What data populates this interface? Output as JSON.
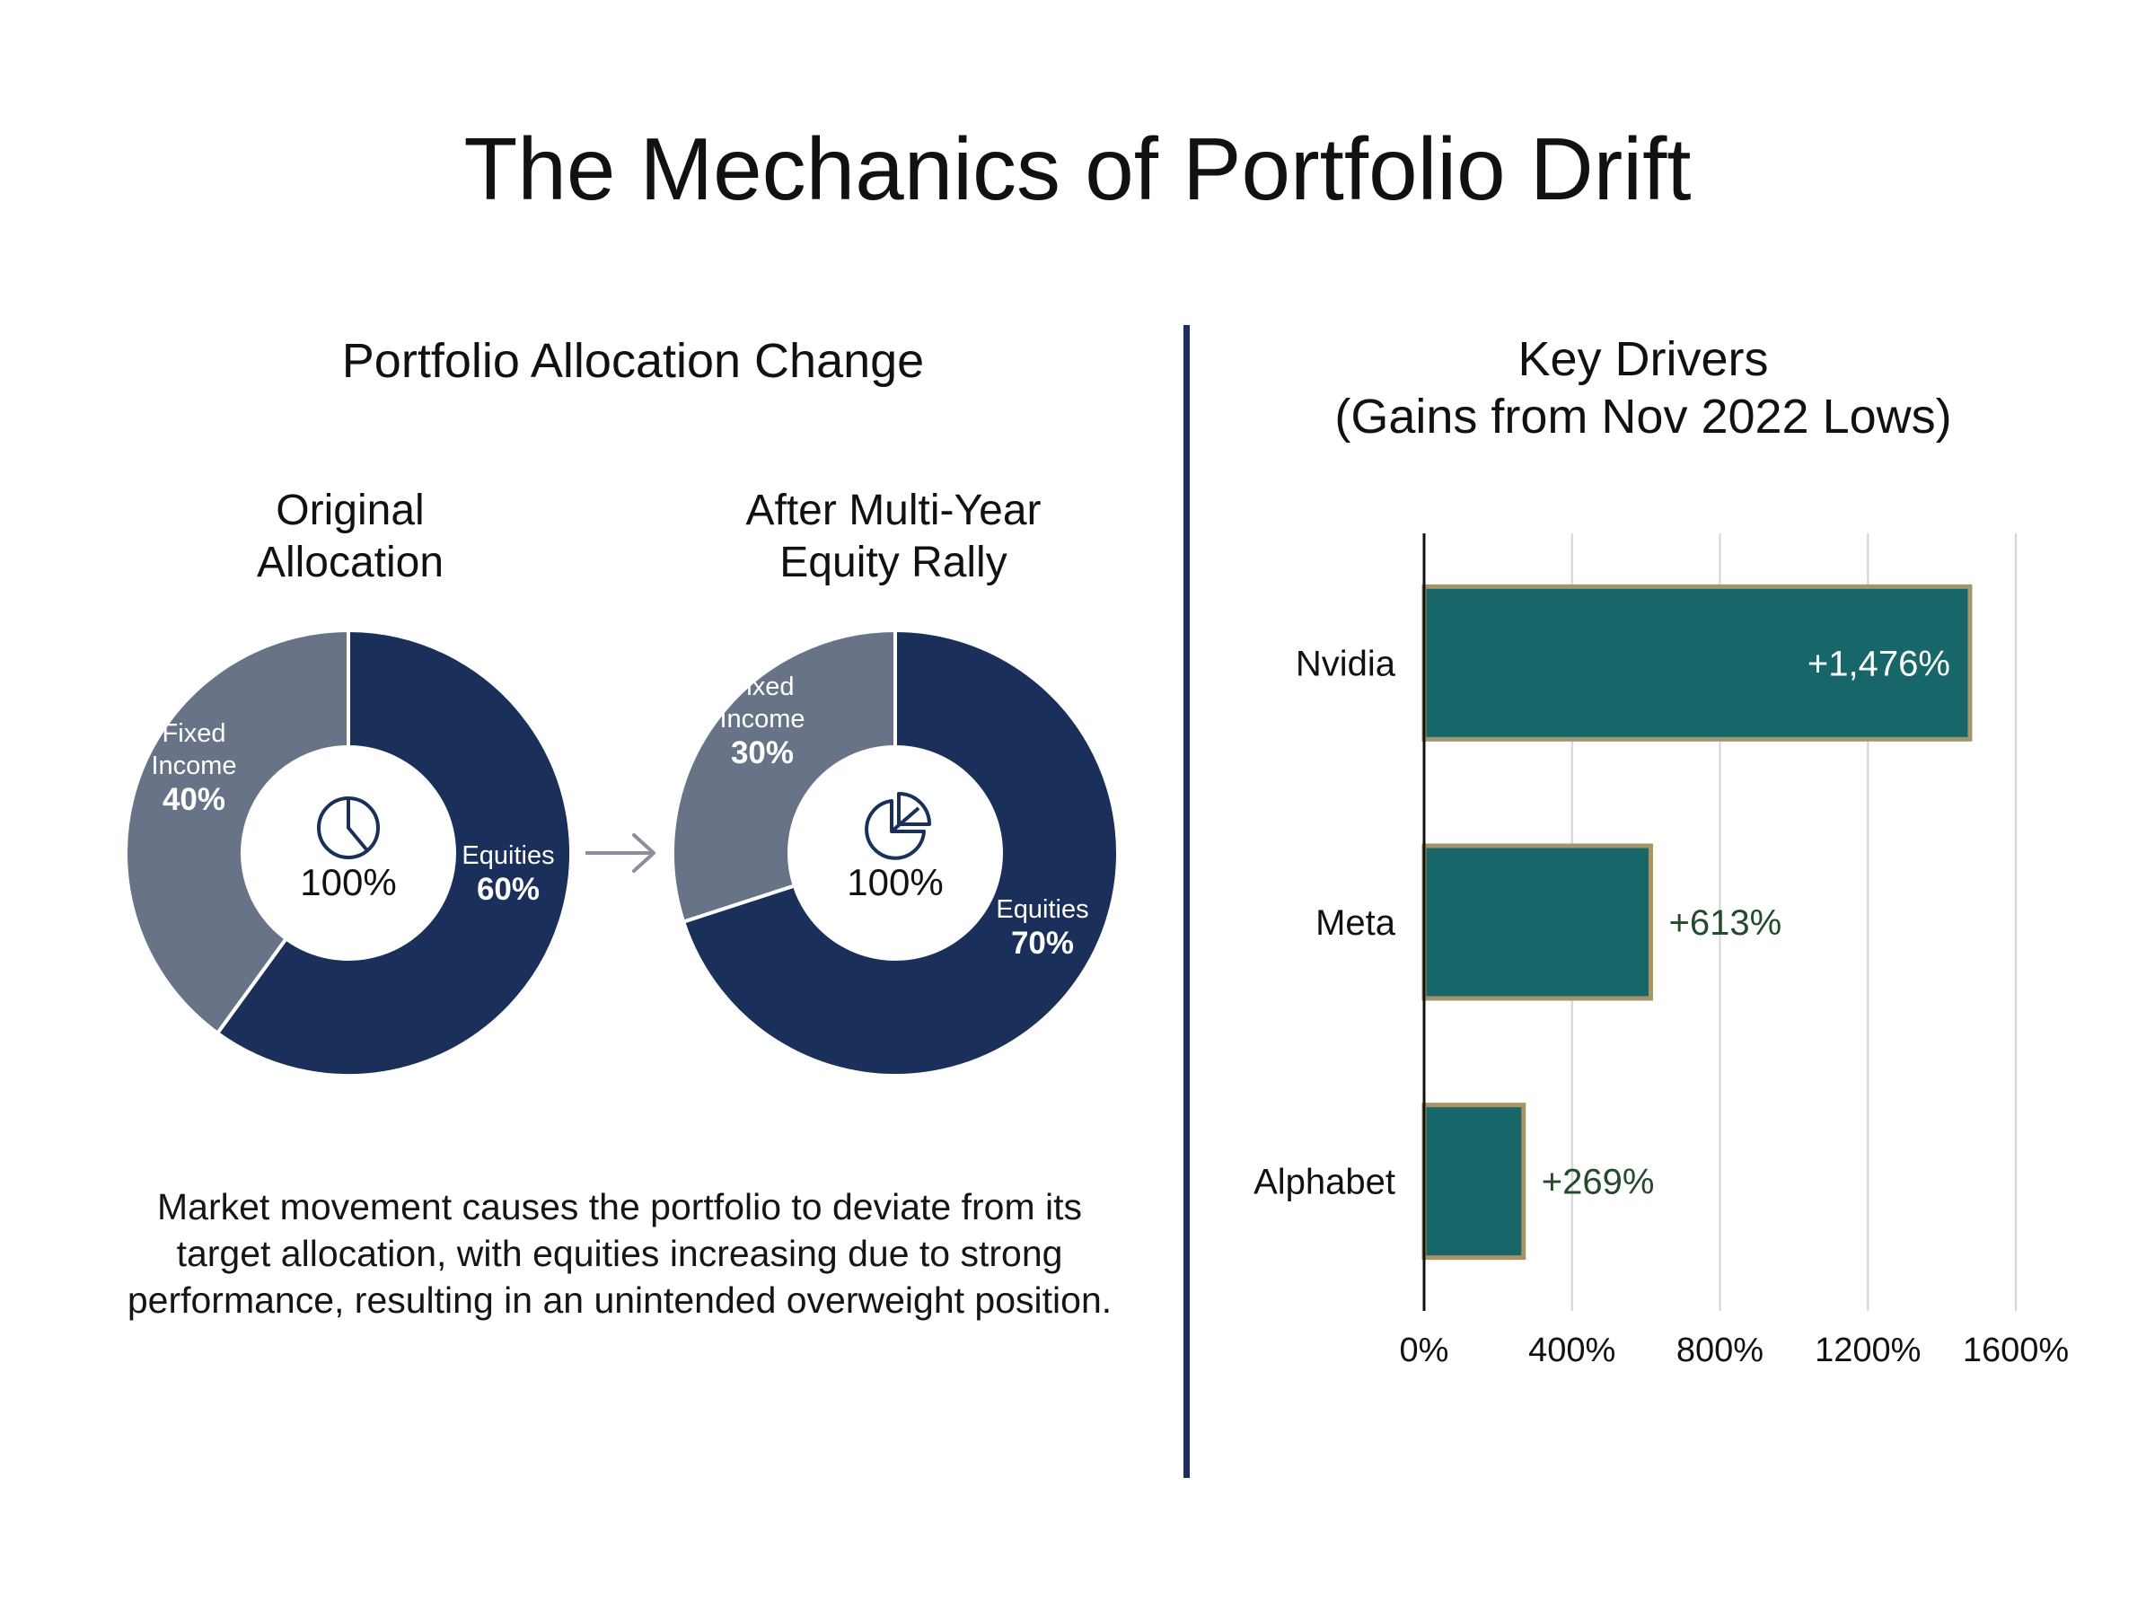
{
  "title": "The Mechanics of Portfolio Drift",
  "left": {
    "title": "Portfolio Allocation Change",
    "caption": "Market movement causes the portfolio to deviate from its target allocation, with equities increasing due to strong performance, resulting in an unintended overweight position."
  },
  "right": {
    "title_line1": "Key Drivers",
    "title_line2": "(Gains from Nov 2022 Lows)"
  },
  "colors": {
    "equities": "#1a2f5a",
    "fixed_income": "#687388",
    "bar": "#17676a",
    "bar_border": "#a69569",
    "grid": "#d4d4d4",
    "value_label_outside": "#244a2c"
  },
  "chart_data": [
    {
      "type": "pie",
      "title_lines": [
        "Original",
        "Allocation"
      ],
      "center_label": "100%",
      "center_icon": "clock-pie-icon",
      "slices": [
        {
          "label_lines": [
            "Equities"
          ],
          "value": 60,
          "value_label": "60%"
        },
        {
          "label_lines": [
            "Fixed",
            "Income"
          ],
          "value": 40,
          "value_label": "40%"
        }
      ]
    },
    {
      "type": "pie",
      "title_lines": [
        "After Multi-Year",
        "Equity Rally"
      ],
      "center_label": "100%",
      "center_icon": "pie-chart-icon",
      "slices": [
        {
          "label_lines": [
            "Equities"
          ],
          "value": 70,
          "value_label": "70%"
        },
        {
          "label_lines": [
            "Fixed",
            "Income"
          ],
          "value": 30,
          "value_label": "30%"
        }
      ]
    },
    {
      "type": "bar",
      "orientation": "horizontal",
      "categories": [
        "Nvidia",
        "Meta",
        "Alphabet"
      ],
      "values": [
        1476,
        613,
        269
      ],
      "value_labels": [
        "+1,476%",
        "+613%",
        "+269%"
      ],
      "xlim": [
        0,
        1600
      ],
      "xticks": [
        0,
        400,
        800,
        1200,
        1600
      ],
      "xtick_labels": [
        "0%",
        "400%",
        "800%",
        "1200%",
        "1600%"
      ],
      "grid": "vertical"
    }
  ]
}
